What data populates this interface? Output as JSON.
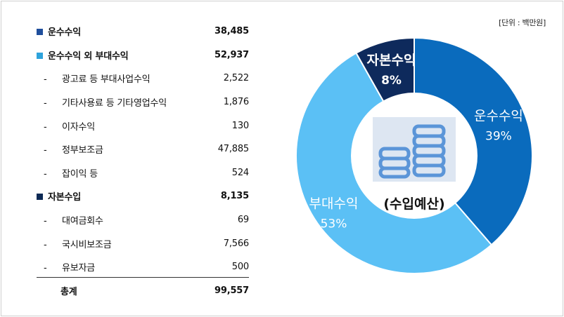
{
  "unit_note": "[단위 : 백만원]",
  "table": {
    "transport": {
      "label": "운수수익",
      "value": "38,485"
    },
    "incidental": {
      "label": "운수수익 외 부대수익",
      "value": "52,937"
    },
    "incidental_items": [
      {
        "label": "광고료 등 부대사업수익",
        "value": "2,522"
      },
      {
        "label": "기타사용료 등 기타영업수익",
        "value": "1,876"
      },
      {
        "label": "이자수익",
        "value": "130"
      },
      {
        "label": "정부보조금",
        "value": "47,885"
      },
      {
        "label": "잡이익 등",
        "value": "524"
      }
    ],
    "capital": {
      "label": "자본수입",
      "value": "8,135"
    },
    "capital_items": [
      {
        "label": "대여금회수",
        "value": "69"
      },
      {
        "label": "국시비보조금",
        "value": "7,566"
      },
      {
        "label": "유보자금",
        "value": "500"
      }
    ],
    "total": {
      "label": "총계",
      "value": "99,557"
    },
    "bullet": "-"
  },
  "chart_data": {
    "type": "pie",
    "donut": true,
    "center_label": "(수입예산)",
    "slices": [
      {
        "label": "운수수익",
        "percent_label": "39%",
        "value": 38485,
        "color": "#0a6bbd"
      },
      {
        "label": "부대수익",
        "percent_label": "53%",
        "value": 52937,
        "color": "#5bc0f5"
      },
      {
        "label": "자본수익",
        "percent_label": "8%",
        "value": 8135,
        "color": "#0e2a5c"
      }
    ],
    "center_icon": "coins-icon",
    "colors": {
      "center_fill": "#ffffff",
      "icon_bg": "#dde6f2",
      "icon_stroke": "#5b95d8",
      "edge": "#ffffff"
    }
  }
}
